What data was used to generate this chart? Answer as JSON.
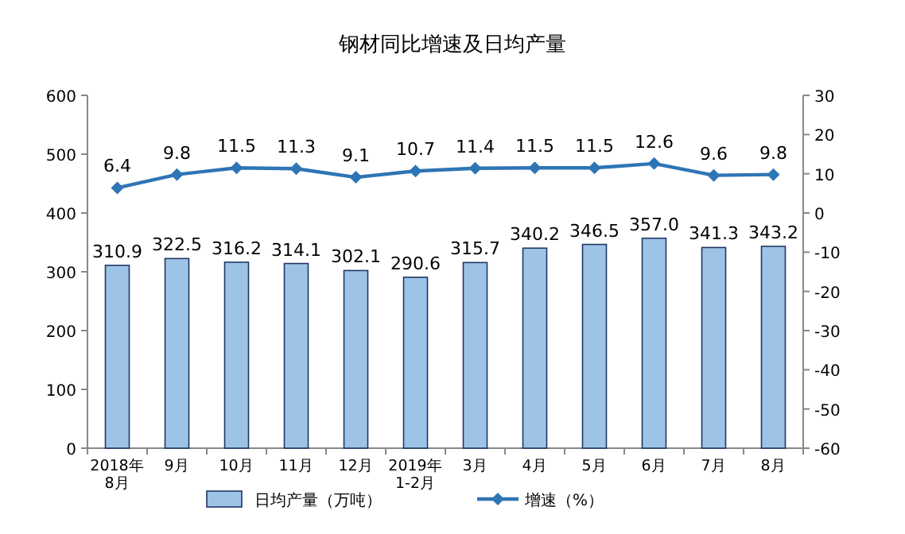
{
  "chart_data": {
    "type": "bar",
    "title": "钢材同比增速及日均产量",
    "categories": [
      "2018年\n8月",
      "9月",
      "10月",
      "11月",
      "12月",
      "2019年\n1-2月",
      "3月",
      "4月",
      "5月",
      "6月",
      "7月",
      "8月"
    ],
    "series": [
      {
        "name": "日均产量（万吨）",
        "color": "#9dc3e6",
        "values": [
          310.9,
          322.5,
          316.2,
          314.1,
          302.1,
          290.6,
          315.7,
          340.2,
          346.5,
          357.0,
          341.3,
          343.2
        ],
        "value_labels": [
          "310.9",
          "322.5",
          "316.2",
          "314.1",
          "302.1",
          "290.6",
          "315.7",
          "340.2",
          "346.5",
          "357.0",
          "341.3",
          "343.2"
        ]
      },
      {
        "name": "增速（%）",
        "type": "line",
        "axis": "y2",
        "color": "#2e75b6",
        "marker": "diamond",
        "values": [
          6.4,
          9.8,
          11.5,
          11.3,
          9.1,
          10.7,
          11.4,
          11.5,
          11.5,
          12.6,
          9.6,
          9.8
        ],
        "value_labels": [
          "6.4",
          "9.8",
          "11.5",
          "11.3",
          "9.1",
          "10.7",
          "11.4",
          "11.5",
          "11.5",
          "12.6",
          "9.6",
          "9.8"
        ]
      }
    ],
    "ylim": [
      0,
      600
    ],
    "yticks": [
      0,
      100,
      200,
      300,
      400,
      500,
      600
    ],
    "y2lim": [
      -60,
      30
    ],
    "y2ticks": [
      -60,
      -50,
      -40,
      -30,
      -20,
      -10,
      0,
      10,
      20,
      30
    ],
    "legend": "bottom"
  }
}
